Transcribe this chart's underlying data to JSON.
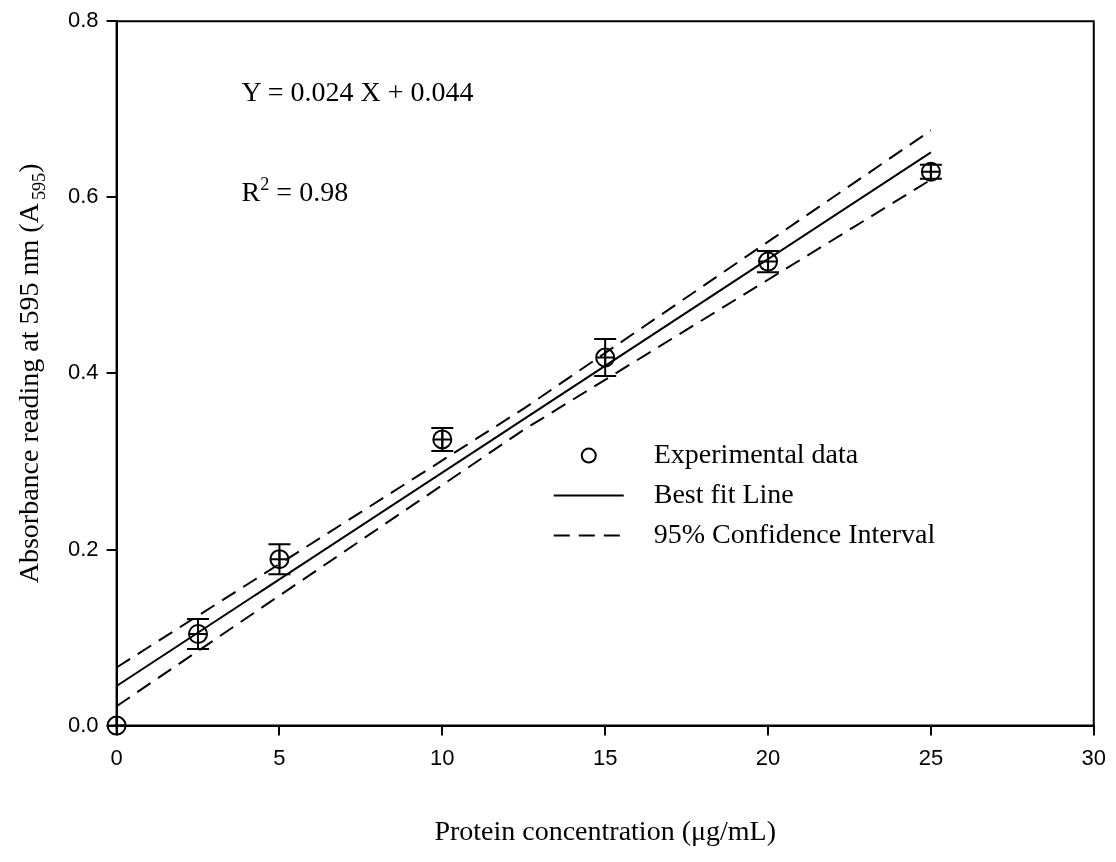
{
  "chart_data": {
    "type": "scatter",
    "xlabel": "Protein concentration (μg/mL)",
    "ylabel": "Absorbance reading at 595 nm (A$_{595}$)",
    "xlim": [
      0,
      30
    ],
    "xticks": [
      0,
      5,
      10,
      15,
      20,
      25,
      30
    ],
    "ylim": [
      0,
      0.8
    ],
    "yticks": [
      {
        "value": 0,
        "label": "0.0"
      },
      {
        "value": 0.2,
        "label": "0.2"
      },
      {
        "value": 0.4,
        "label": "0.4"
      },
      {
        "value": 0.6,
        "label": "0.6"
      },
      {
        "value": 0.8,
        "label": "0.8"
      }
    ],
    "grid": false,
    "legend": "bottom right",
    "annotations": [
      "Y = 0.024 X + 0.044",
      "R$^{2}$ = 0.98"
    ],
    "series": [
      {
        "name": "Experimental data",
        "type": "scatter",
        "color": "#000000",
        "marker": "circle",
        "x": [
          0,
          2.5,
          5,
          10,
          15,
          20,
          25
        ],
        "values": [
          0,
          0.104,
          0.189,
          0.325,
          0.418,
          0.527,
          0.629
        ],
        "errors": [
          null,
          0.017,
          0.017,
          0.013,
          0.021,
          0.012,
          0.008
        ]
      },
      {
        "name": "Best fit Line",
        "type": "line",
        "color": "#000000",
        "line_style": "solid",
        "marker": "none",
        "x": [
          0,
          25
        ],
        "values": [
          0.045,
          0.651
        ]
      },
      {
        "name": "95% Confidence Interval",
        "type": "line",
        "color": "#000000",
        "line_style": "dashed",
        "marker": "none",
        "x": [
          0,
          12.5,
          25
        ],
        "values": [
          0.066,
          0.36,
          0.676
        ]
      },
      {
        "type": "line",
        "color": "#000000",
        "line_style": "dashed",
        "marker": "none",
        "x": [
          0,
          12.5,
          25
        ],
        "values": [
          0.022,
          0.336,
          0.62
        ]
      }
    ]
  }
}
